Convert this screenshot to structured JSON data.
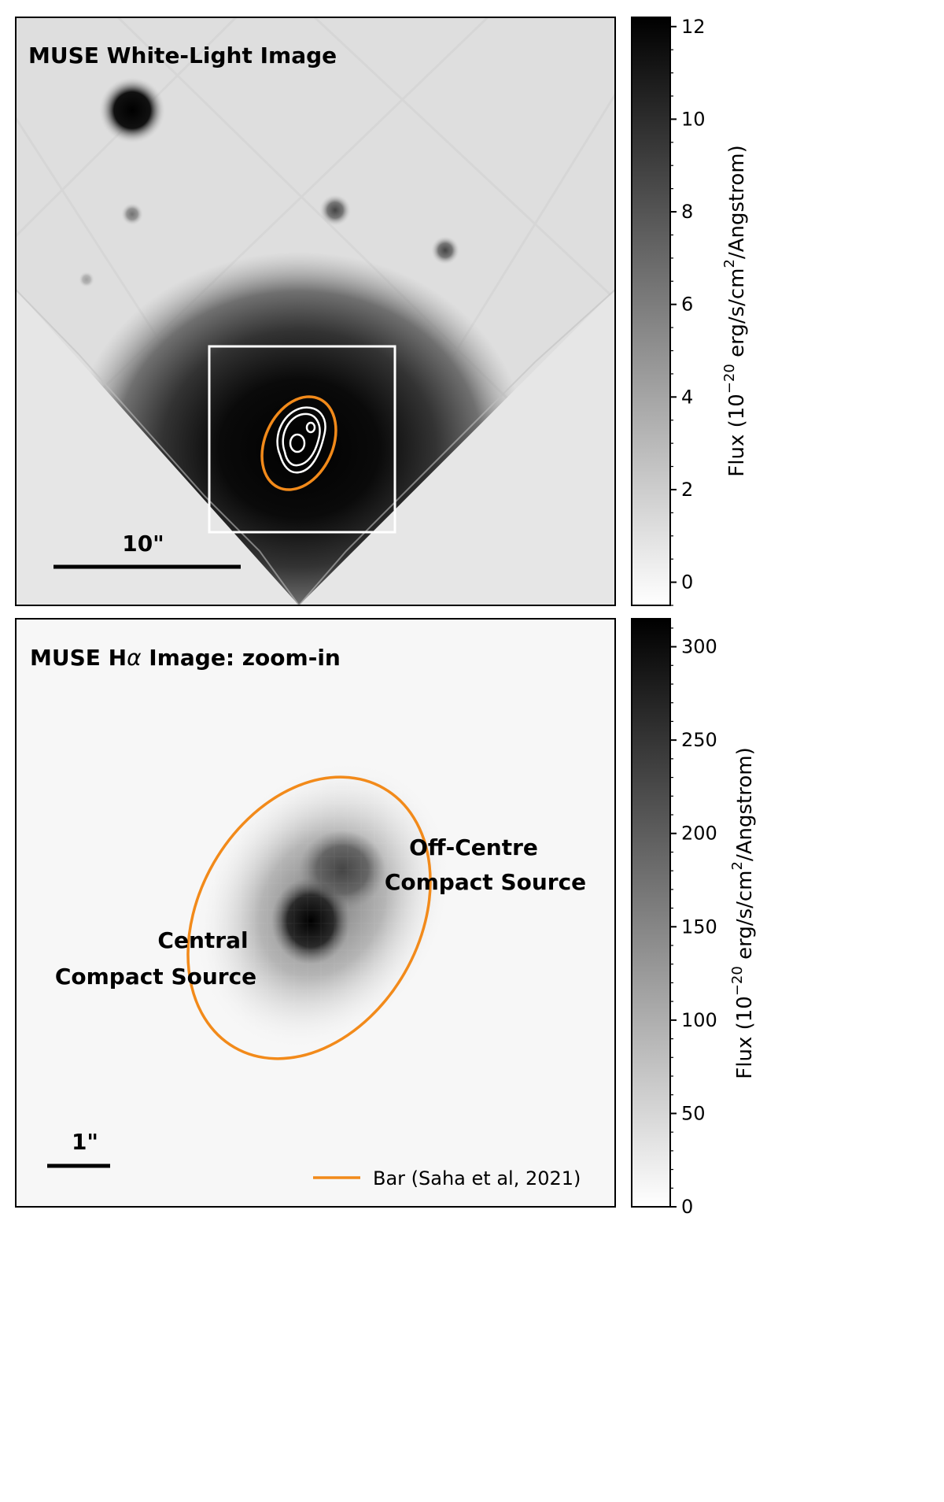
{
  "panel_top": {
    "title": "MUSE White-Light Image",
    "scalebar_label": "10\"",
    "colorbar": {
      "label_prefix": "Flux (10",
      "label_exp": "−20",
      "label_mid": " erg/s/cm",
      "label_exp2": "2",
      "label_suffix": "/Angstrom)",
      "ticks": [
        "0",
        "2",
        "4",
        "6",
        "8",
        "10",
        "12"
      ],
      "min": -0.5,
      "max": 12.2
    }
  },
  "panel_bottom": {
    "title_prefix": "MUSE H",
    "title_greek": "α",
    "title_suffix": " Image: zoom-in",
    "scalebar_label": "1\"",
    "label_central_1": "Central",
    "label_central_2": "Compact Source",
    "label_offcentre_1": "Off-Centre",
    "label_offcentre_2": "Compact Source",
    "legend_label": "Bar (Saha et al, 2021)",
    "colorbar": {
      "label_prefix": "Flux (10",
      "label_exp": "−20",
      "label_mid": " erg/s/cm",
      "label_exp2": "2",
      "label_suffix": "/Angstrom)",
      "ticks": [
        "0",
        "50",
        "100",
        "150",
        "200",
        "250",
        "300"
      ],
      "min": 0,
      "max": 315
    }
  },
  "colors": {
    "bar_ellipse": "#f28a1a",
    "box": "#ffffff",
    "contour": "#ffffff"
  }
}
